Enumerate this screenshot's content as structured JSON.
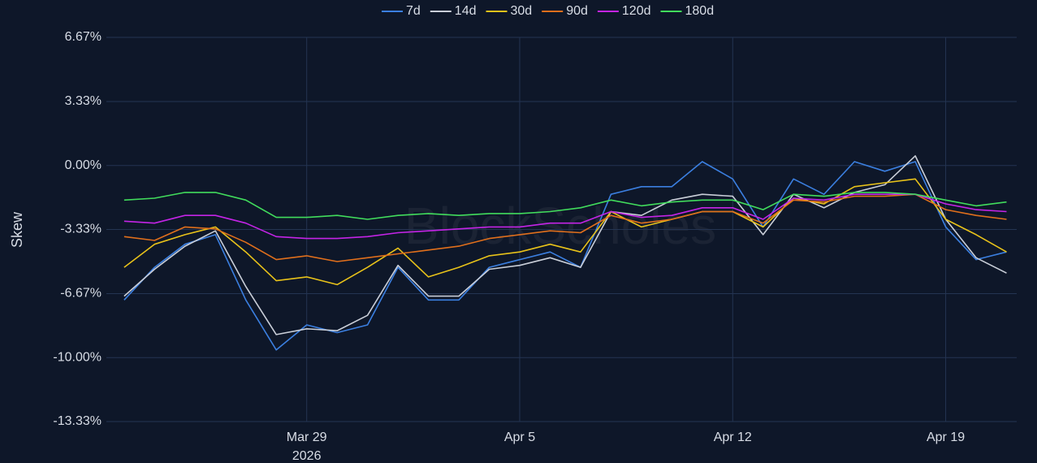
{
  "chart_data": {
    "type": "line",
    "y_label": "Skew",
    "watermark": "BlockScholes",
    "x_year": "2026",
    "legend": "top",
    "grid": true,
    "x": [
      "2026-03-23",
      "2026-03-24",
      "2026-03-25",
      "2026-03-26",
      "2026-03-27",
      "2026-03-28",
      "2026-03-29",
      "2026-03-30",
      "2026-03-31",
      "2026-04-01",
      "2026-04-02",
      "2026-04-03",
      "2026-04-04",
      "2026-04-05",
      "2026-04-06",
      "2026-04-07",
      "2026-04-08",
      "2026-04-09",
      "2026-04-10",
      "2026-04-11",
      "2026-04-12",
      "2026-04-13",
      "2026-04-14",
      "2026-04-15",
      "2026-04-16",
      "2026-04-17",
      "2026-04-18",
      "2026-04-19",
      "2026-04-20",
      "2026-04-21"
    ],
    "xlim": [
      "2026-03-22T10:00",
      "2026-04-21T08:00"
    ],
    "xticks": [
      {
        "value": "2026-03-29",
        "label": "Mar 29"
      },
      {
        "value": "2026-04-05",
        "label": "Apr 5"
      },
      {
        "value": "2026-04-12",
        "label": "Apr 12"
      },
      {
        "value": "2026-04-19",
        "label": "Apr 19"
      }
    ],
    "ylim": [
      -13.33,
      6.67
    ],
    "yticks": [
      {
        "value": 6.67,
        "label": "6.67%"
      },
      {
        "value": 3.33,
        "label": "3.33%"
      },
      {
        "value": 0,
        "label": "0.00%"
      },
      {
        "value": -3.33,
        "label": "-3.33%"
      },
      {
        "value": -6.67,
        "label": "-6.67%"
      },
      {
        "value": -10,
        "label": "-10.00%"
      },
      {
        "value": -13.33,
        "label": "-13.33%"
      }
    ],
    "series": [
      {
        "name": "7d",
        "color": "#3b7fe0",
        "values": [
          -7.0,
          -5.3,
          -4.1,
          -3.6,
          -7.0,
          -9.6,
          -8.3,
          -8.7,
          -8.3,
          -5.3,
          -7.0,
          -7.0,
          -5.3,
          -4.9,
          -4.5,
          -5.3,
          -1.5,
          -1.1,
          -1.1,
          0.2,
          -0.7,
          -3.2,
          -0.7,
          -1.5,
          0.2,
          -0.3,
          0.2,
          -3.2,
          -4.9,
          -4.5
        ]
      },
      {
        "name": "14d",
        "color": "#c9ced8",
        "values": [
          -6.8,
          -5.4,
          -4.2,
          -3.4,
          -6.3,
          -8.8,
          -8.5,
          -8.6,
          -7.8,
          -5.2,
          -6.8,
          -6.8,
          -5.4,
          -5.2,
          -4.8,
          -5.3,
          -2.4,
          -2.6,
          -1.8,
          -1.5,
          -1.6,
          -3.6,
          -1.5,
          -2.2,
          -1.4,
          -1.0,
          0.5,
          -2.8,
          -4.8,
          -5.6
        ]
      },
      {
        "name": "30d",
        "color": "#e8c21a",
        "values": [
          -5.3,
          -4.1,
          -3.6,
          -3.2,
          -4.5,
          -6.0,
          -5.8,
          -6.2,
          -5.3,
          -4.3,
          -5.8,
          -5.3,
          -4.7,
          -4.5,
          -4.1,
          -4.5,
          -2.4,
          -3.2,
          -2.8,
          -2.4,
          -2.4,
          -3.2,
          -1.7,
          -2.0,
          -1.1,
          -0.9,
          -0.7,
          -2.8,
          -3.6,
          -4.5
        ]
      },
      {
        "name": "90d",
        "color": "#e06f1c",
        "values": [
          -3.7,
          -3.9,
          -3.2,
          -3.3,
          -4.0,
          -4.9,
          -4.7,
          -5.0,
          -4.8,
          -4.6,
          -4.4,
          -4.2,
          -3.8,
          -3.6,
          -3.4,
          -3.5,
          -2.6,
          -3.0,
          -2.8,
          -2.4,
          -2.4,
          -3.0,
          -1.8,
          -1.9,
          -1.6,
          -1.6,
          -1.5,
          -2.3,
          -2.6,
          -2.8
        ]
      },
      {
        "name": "120d",
        "color": "#c424e6",
        "values": [
          -2.9,
          -3.0,
          -2.6,
          -2.6,
          -3.0,
          -3.7,
          -3.8,
          -3.8,
          -3.7,
          -3.5,
          -3.4,
          -3.3,
          -3.2,
          -3.2,
          -3.0,
          -3.0,
          -2.4,
          -2.7,
          -2.6,
          -2.2,
          -2.2,
          -2.8,
          -1.7,
          -1.8,
          -1.5,
          -1.5,
          -1.5,
          -2.0,
          -2.3,
          -2.4
        ]
      },
      {
        "name": "180d",
        "color": "#41dc5c",
        "values": [
          -1.8,
          -1.7,
          -1.4,
          -1.4,
          -1.8,
          -2.7,
          -2.7,
          -2.6,
          -2.8,
          -2.6,
          -2.5,
          -2.6,
          -2.5,
          -2.5,
          -2.4,
          -2.2,
          -1.8,
          -2.1,
          -1.9,
          -1.8,
          -1.8,
          -2.3,
          -1.5,
          -1.6,
          -1.4,
          -1.4,
          -1.5,
          -1.8,
          -2.1,
          -1.9
        ]
      }
    ]
  }
}
